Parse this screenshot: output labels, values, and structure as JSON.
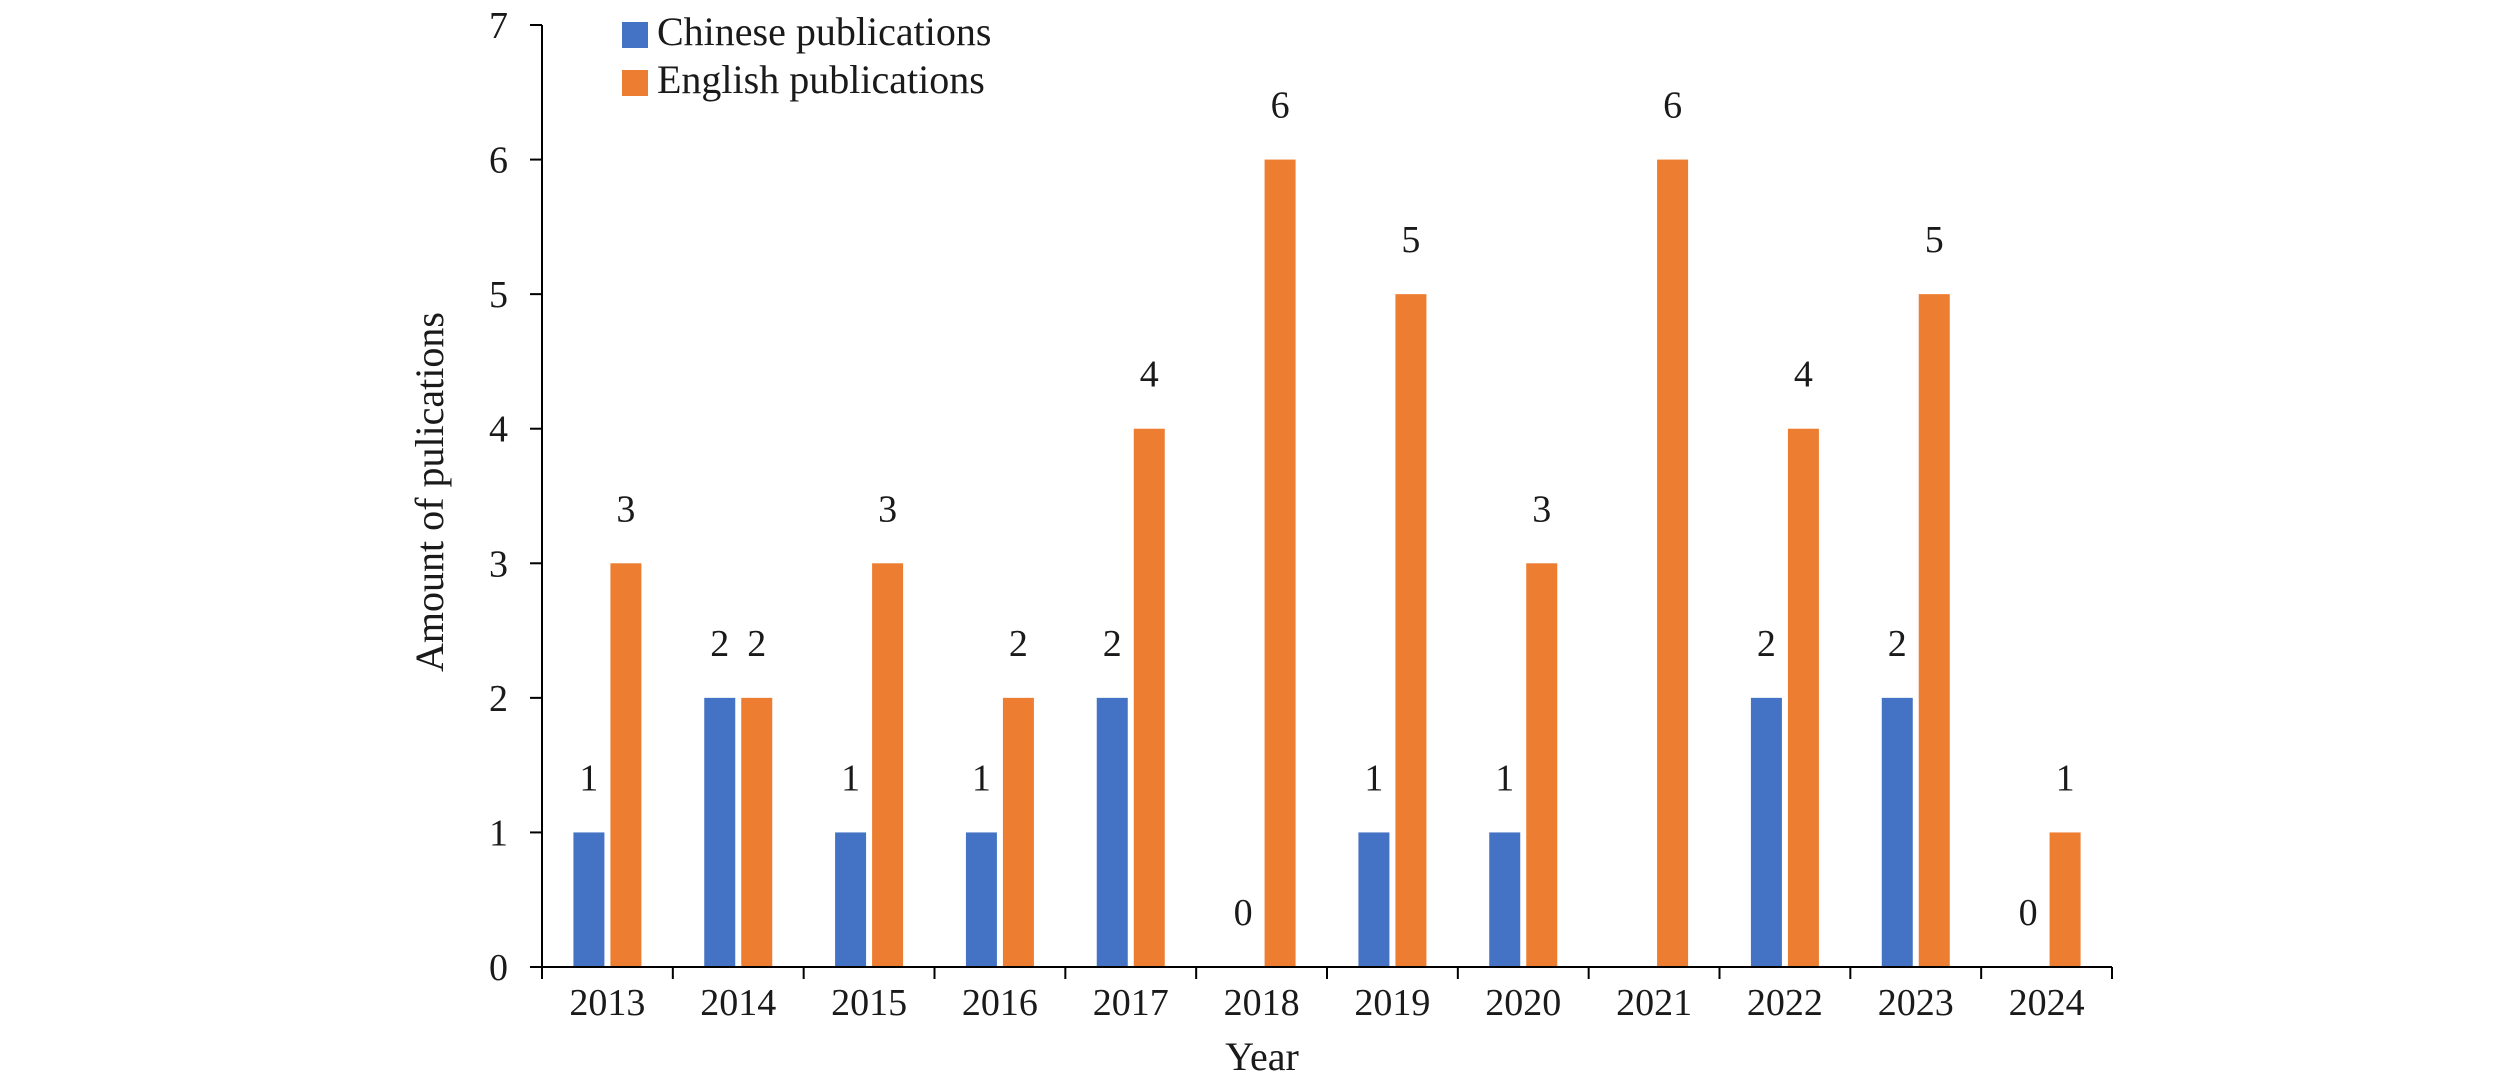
{
  "chart_data": {
    "type": "bar",
    "title": "",
    "xlabel": "Year",
    "ylabel": "Amount of pulications",
    "ylim": [
      0,
      7
    ],
    "yticks": [
      0,
      1,
      2,
      3,
      4,
      5,
      6,
      7
    ],
    "grid": false,
    "legend": "top-left",
    "categories": [
      "2013",
      "2014",
      "2015",
      "2016",
      "2017",
      "2018",
      "2019",
      "2020",
      "2021",
      "2022",
      "2023",
      "2024"
    ],
    "series": [
      {
        "name": "Chinese publications",
        "color": "#4472c4",
        "values": [
          1,
          2,
          1,
          1,
          2,
          0,
          1,
          1,
          null,
          2,
          2,
          0
        ],
        "labels": [
          "1",
          "2",
          "1",
          "1",
          "2",
          "0",
          "1",
          "1",
          "",
          "2",
          "2",
          "0"
        ]
      },
      {
        "name": "English publications",
        "color": "#ed7d31",
        "values": [
          3,
          2,
          3,
          2,
          4,
          6,
          5,
          3,
          6,
          4,
          5,
          1
        ],
        "labels": [
          "3",
          "2",
          "3",
          "2",
          "4",
          "6",
          "5",
          "3",
          "6",
          "4",
          "5",
          "1"
        ]
      }
    ]
  }
}
